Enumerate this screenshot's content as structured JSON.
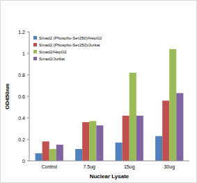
{
  "chart_data": {
    "type": "bar",
    "x_label": "Nuclear Lysate",
    "y_label": "OD450nm",
    "categories": [
      "Control",
      "7.5ug",
      "15ug",
      "30ug"
    ],
    "series": [
      {
        "name": "Smad2 (Phospho-Ser250)/HepG2",
        "color": "#4f81bd",
        "values": [
          0.07,
          0.11,
          0.17,
          0.23
        ]
      },
      {
        "name": "Smad2 (Phospho-Ser250)/Jurkat",
        "color": "#c0504d",
        "values": [
          0.18,
          0.36,
          0.42,
          0.56
        ]
      },
      {
        "name": "Smad2/HepG2",
        "color": "#9bbb59",
        "values": [
          0.11,
          0.37,
          0.82,
          1.04
        ]
      },
      {
        "name": "Smad2/Jurkat",
        "color": "#8064a2",
        "values": [
          0.15,
          0.33,
          0.42,
          0.63
        ]
      }
    ],
    "ylim": [
      0,
      1.2
    ],
    "yticks": [
      0,
      0.2,
      0.4,
      0.6,
      0.8,
      1,
      1.2
    ],
    "grid": false,
    "legend": "top-left"
  }
}
